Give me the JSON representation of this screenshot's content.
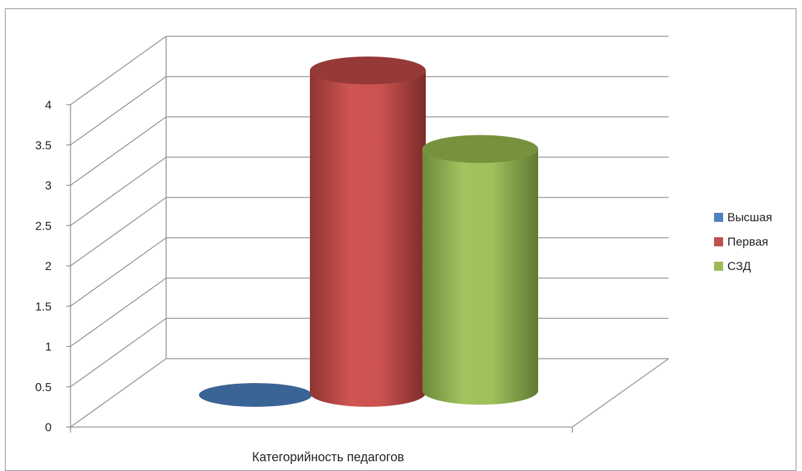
{
  "chart_data": {
    "type": "bar",
    "style": "3d-cylinder",
    "categories": [
      "Категорийность педагогов"
    ],
    "xlabel": "Категорийность педагогов",
    "ylabel": "",
    "ylim": [
      0,
      4
    ],
    "ytick_labels": [
      "0",
      "0.5",
      "1",
      "1.5",
      "2",
      "2.5",
      "3",
      "3.5",
      "4"
    ],
    "grid": true,
    "legend_position": "right",
    "series": [
      {
        "name": "Высшая",
        "values": [
          0
        ],
        "color": "#4f81bd"
      },
      {
        "name": "Первая",
        "values": [
          4
        ],
        "color": "#c0504d"
      },
      {
        "name": "СЗД",
        "values": [
          3
        ],
        "color": "#9bbb59"
      }
    ]
  }
}
